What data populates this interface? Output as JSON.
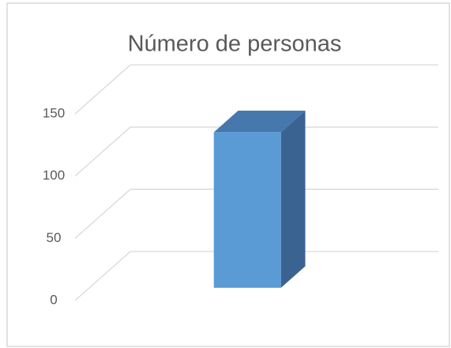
{
  "chart_data": {
    "type": "bar3d",
    "title": "Número de personas",
    "categories": [
      null
    ],
    "values": [
      125
    ],
    "color": "#5b9bd5",
    "ylim": [
      0,
      150
    ],
    "yticks": [
      0,
      50,
      100,
      150
    ],
    "grid": true
  }
}
